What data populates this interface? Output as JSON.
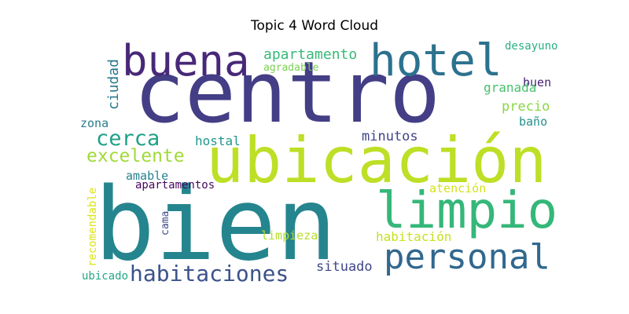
{
  "title": "Topic 4 Word Cloud",
  "words": [
    {
      "text": "centro",
      "color": "#433e85"
    },
    {
      "text": "bien",
      "color": "#25858e"
    },
    {
      "text": "ubicación",
      "color": "#bddf26"
    },
    {
      "text": "hotel",
      "color": "#2c728e"
    },
    {
      "text": "buena",
      "color": "#482878"
    },
    {
      "text": "limpio",
      "color": "#35b779"
    },
    {
      "text": "personal",
      "color": "#31688e"
    },
    {
      "text": "habitaciones",
      "color": "#3b528b"
    },
    {
      "text": "cerca",
      "color": "#1fa187"
    },
    {
      "text": "excelente",
      "color": "#a0da39"
    },
    {
      "text": "apartamento",
      "color": "#38b977"
    },
    {
      "text": "ciudad",
      "color": "#2a788e"
    },
    {
      "text": "desayuno",
      "color": "#2ab07f"
    },
    {
      "text": "buen",
      "color": "#482475"
    },
    {
      "text": "agradable",
      "color": "#7ad151"
    },
    {
      "text": "granada",
      "color": "#48c16e"
    },
    {
      "text": "precio",
      "color": "#8bd646"
    },
    {
      "text": "baño",
      "color": "#21918c"
    },
    {
      "text": "zona",
      "color": "#287d8e"
    },
    {
      "text": "hostal",
      "color": "#1f988b"
    },
    {
      "text": "minutos",
      "color": "#414487"
    },
    {
      "text": "amable",
      "color": "#26828e"
    },
    {
      "text": "apartamentos",
      "color": "#46085c"
    },
    {
      "text": "atención",
      "color": "#d2e21b"
    },
    {
      "text": "recomendable",
      "color": "#dde318"
    },
    {
      "text": "cama",
      "color": "#3e4989"
    },
    {
      "text": "limpieza",
      "color": "#b5de2b"
    },
    {
      "text": "habitación",
      "color": "#c8e020"
    },
    {
      "text": "ubicado",
      "color": "#22a785"
    },
    {
      "text": "situado",
      "color": "#3f4788"
    }
  ]
}
